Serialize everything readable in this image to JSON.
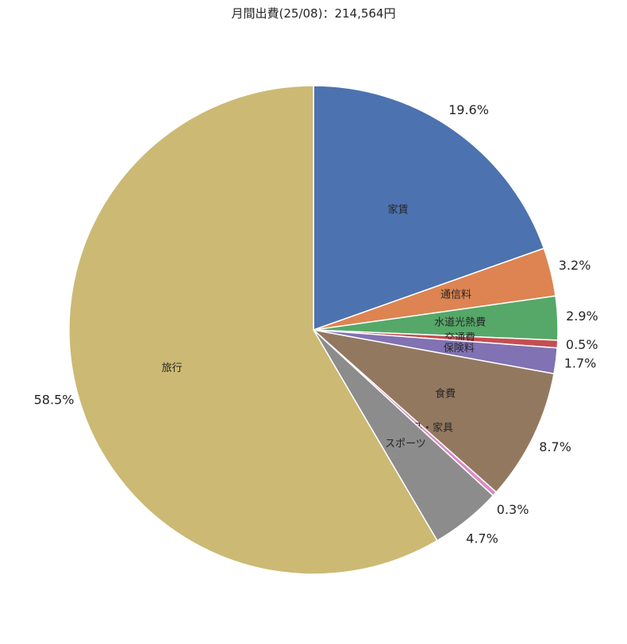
{
  "chart_data": {
    "type": "pie",
    "title": "月間出費(25/08)：214,564円",
    "start": "top, clockwise",
    "slices": [
      {
        "label": "家賃",
        "value": 19.6,
        "pct_label": "19.6%",
        "color": "#4c72b0"
      },
      {
        "label": "通信料",
        "value": 3.2,
        "pct_label": "3.2%",
        "color": "#dd8452"
      },
      {
        "label": "水道光熱費",
        "value": 2.9,
        "pct_label": "2.9%",
        "color": "#55a868"
      },
      {
        "label": "交通費",
        "value": 0.5,
        "pct_label": "0.5%",
        "color": "#c44e52"
      },
      {
        "label": "保険料",
        "value": 1.7,
        "pct_label": "1.7%",
        "color": "#8172b3"
      },
      {
        "label": "食費",
        "value": 8.7,
        "pct_label": "8.7%",
        "color": "#937860"
      },
      {
        "label": "日用品・家具",
        "value": 0.3,
        "pct_label": "0.3%",
        "color": "#da8bc3"
      },
      {
        "label": "スポーツ",
        "value": 4.7,
        "pct_label": "4.7%",
        "color": "#8c8c8c"
      },
      {
        "label": "旅行",
        "value": 58.5,
        "pct_label": "58.5%",
        "color": "#ccb974"
      }
    ]
  }
}
